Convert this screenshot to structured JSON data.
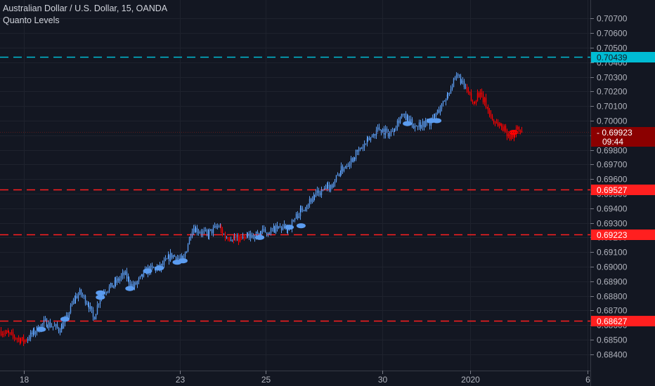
{
  "header": {
    "symbol_title": "Australian Dollar / U.S. Dollar, 15, OANDA",
    "study_name": "Quanto Levels"
  },
  "chart_data": {
    "type": "candlestick",
    "y_axis": {
      "min": 0.6836,
      "max": 0.7075,
      "ticks": [
        "0.70700",
        "0.70600",
        "0.70500",
        "0.70400",
        "0.70300",
        "0.70200",
        "0.70100",
        "0.70000",
        "0.69900",
        "0.69800",
        "0.69700",
        "0.69600",
        "0.69500",
        "0.69400",
        "0.69300",
        "0.69200",
        "0.69100",
        "0.69000",
        "0.68900",
        "0.68800",
        "0.68700",
        "0.68600",
        "0.68500",
        "0.68400"
      ],
      "position": "right"
    },
    "x_axis": {
      "ticks": [
        {
          "label": "18",
          "pos": 0.04
        },
        {
          "label": "23",
          "pos": 0.305
        },
        {
          "label": "25",
          "pos": 0.45
        },
        {
          "label": "30",
          "pos": 0.648
        },
        {
          "label": "2020",
          "pos": 0.797
        },
        {
          "label": "6",
          "pos": 0.995
        }
      ]
    },
    "grid": true,
    "levels": [
      {
        "value": 0.70439,
        "label": "0.70439",
        "color": "#00bcd4"
      },
      {
        "value": 0.69527,
        "label": "0.69527",
        "color": "#ff1f1f"
      },
      {
        "value": 0.69223,
        "label": "0.69223",
        "color": "#ff1f1f"
      },
      {
        "value": 0.68627,
        "label": "0.68627",
        "color": "#ff1f1f"
      }
    ],
    "last_price": {
      "value": 0.69923,
      "label": "0.69923",
      "countdown": "09:44",
      "color": "#8b0000"
    },
    "colors": {
      "up": "#5b9cf0",
      "down": "#ff0000"
    },
    "price_path": [
      {
        "t": 0.0,
        "p": 0.6856
      },
      {
        "t": 0.04,
        "p": 0.6849
      },
      {
        "t": 0.06,
        "p": 0.6856
      },
      {
        "t": 0.075,
        "p": 0.6862
      },
      {
        "t": 0.1,
        "p": 0.6857
      },
      {
        "t": 0.11,
        "p": 0.6862
      },
      {
        "t": 0.125,
        "p": 0.6878
      },
      {
        "t": 0.135,
        "p": 0.6882
      },
      {
        "t": 0.15,
        "p": 0.6874
      },
      {
        "t": 0.158,
        "p": 0.6864
      },
      {
        "t": 0.17,
        "p": 0.6882
      },
      {
        "t": 0.19,
        "p": 0.6887
      },
      {
        "t": 0.21,
        "p": 0.6895
      },
      {
        "t": 0.225,
        "p": 0.6886
      },
      {
        "t": 0.25,
        "p": 0.6898
      },
      {
        "t": 0.27,
        "p": 0.6899
      },
      {
        "t": 0.29,
        "p": 0.6908
      },
      {
        "t": 0.31,
        "p": 0.6904
      },
      {
        "t": 0.325,
        "p": 0.6927
      },
      {
        "t": 0.35,
        "p": 0.6922
      },
      {
        "t": 0.37,
        "p": 0.6928
      },
      {
        "t": 0.38,
        "p": 0.6921
      },
      {
        "t": 0.41,
        "p": 0.6919
      },
      {
        "t": 0.44,
        "p": 0.6923
      },
      {
        "t": 0.47,
        "p": 0.6926
      },
      {
        "t": 0.49,
        "p": 0.6927
      },
      {
        "t": 0.5,
        "p": 0.6934
      },
      {
        "t": 0.53,
        "p": 0.6948
      },
      {
        "t": 0.56,
        "p": 0.6955
      },
      {
        "t": 0.575,
        "p": 0.6965
      },
      {
        "t": 0.6,
        "p": 0.6976
      },
      {
        "t": 0.625,
        "p": 0.6987
      },
      {
        "t": 0.64,
        "p": 0.6995
      },
      {
        "t": 0.66,
        "p": 0.6991
      },
      {
        "t": 0.68,
        "p": 0.7004
      },
      {
        "t": 0.7,
        "p": 0.6997
      },
      {
        "t": 0.73,
        "p": 0.6999
      },
      {
        "t": 0.75,
        "p": 0.7012
      },
      {
        "t": 0.765,
        "p": 0.7024
      },
      {
        "t": 0.775,
        "p": 0.7031
      },
      {
        "t": 0.783,
        "p": 0.7025
      },
      {
        "t": 0.795,
        "p": 0.7017
      },
      {
        "t": 0.8,
        "p": 0.7011
      },
      {
        "t": 0.81,
        "p": 0.7019
      },
      {
        "t": 0.82,
        "p": 0.7013
      },
      {
        "t": 0.835,
        "p": 0.7
      },
      {
        "t": 0.85,
        "p": 0.6996
      },
      {
        "t": 0.865,
        "p": 0.6989
      },
      {
        "t": 0.875,
        "p": 0.6994
      },
      {
        "t": 0.885,
        "p": 0.6991
      }
    ],
    "markers": [
      {
        "t": 0.07,
        "p": 0.6857
      },
      {
        "t": 0.11,
        "p": 0.6864
      },
      {
        "t": 0.17,
        "p": 0.6879
      },
      {
        "t": 0.17,
        "p": 0.6882
      },
      {
        "t": 0.22,
        "p": 0.6885
      },
      {
        "t": 0.25,
        "p": 0.6897
      },
      {
        "t": 0.27,
        "p": 0.6899
      },
      {
        "t": 0.3,
        "p": 0.6903
      },
      {
        "t": 0.31,
        "p": 0.6904
      },
      {
        "t": 0.44,
        "p": 0.692
      },
      {
        "t": 0.49,
        "p": 0.6927
      },
      {
        "t": 0.51,
        "p": 0.6928
      },
      {
        "t": 0.69,
        "p": 0.6998
      },
      {
        "t": 0.73,
        "p": 0.7
      },
      {
        "t": 0.74,
        "p": 0.7
      },
      {
        "t": 0.87,
        "p": 0.6992
      }
    ]
  }
}
